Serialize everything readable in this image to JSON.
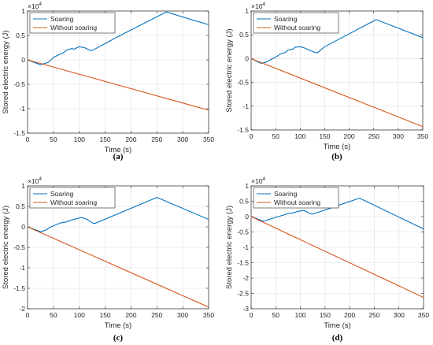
{
  "chart_data": [
    {
      "type": "line",
      "caption": "(a)",
      "xlabel": "Time (s)",
      "ylabel": "Stored electric energy (J)",
      "exponent_label": "×10",
      "exponent_power": "4",
      "xlim": [
        0,
        350
      ],
      "ylim": [
        -1.5,
        1.0
      ],
      "xticks": [
        0,
        50,
        100,
        150,
        200,
        250,
        300,
        350
      ],
      "yticks": [
        -1.5,
        -1,
        -0.5,
        0,
        0.5,
        1
      ],
      "ytick_labels": [
        "-1.5",
        "-1",
        "-0.5",
        "0",
        "0.5",
        "1"
      ],
      "grid": true,
      "legend_position": "top-left",
      "series": [
        {
          "name": "Soaring",
          "color": "#0072BD",
          "x": [
            0,
            25,
            40,
            50,
            60,
            70,
            75,
            85,
            90,
            100,
            110,
            120,
            125,
            170,
            268,
            350
          ],
          "y": [
            0,
            -0.1,
            -0.05,
            0.05,
            0.1,
            0.15,
            0.2,
            0.23,
            0.22,
            0.27,
            0.25,
            0.2,
            0.19,
            0.45,
            0.98,
            0.72
          ]
        },
        {
          "name": "Without soaring",
          "color": "#D95319",
          "x": [
            0,
            350
          ],
          "y": [
            0,
            -1.03
          ]
        }
      ]
    },
    {
      "type": "line",
      "caption": "(b)",
      "xlabel": "Time (s)",
      "ylabel": "Stored electric energy (J)",
      "exponent_label": "×10",
      "exponent_power": "4",
      "xlim": [
        0,
        350
      ],
      "ylim": [
        -1.5,
        1.0
      ],
      "xticks": [
        0,
        50,
        100,
        150,
        200,
        250,
        300,
        350
      ],
      "yticks": [
        -1.5,
        -1,
        -0.5,
        0,
        0.5,
        1
      ],
      "ytick_labels": [
        "-1.5",
        "-1",
        "-0.5",
        "0",
        "0.5",
        "1"
      ],
      "grid": true,
      "legend_position": "top-left",
      "series": [
        {
          "name": "Soaring",
          "color": "#0072BD",
          "x": [
            0,
            20,
            30,
            40,
            50,
            60,
            70,
            75,
            85,
            90,
            100,
            110,
            120,
            130,
            135,
            150,
            255,
            350
          ],
          "y": [
            0,
            -0.1,
            -0.08,
            -0.02,
            0.03,
            0.1,
            0.13,
            0.18,
            0.2,
            0.24,
            0.25,
            0.22,
            0.17,
            0.13,
            0.12,
            0.25,
            0.82,
            0.44
          ]
        },
        {
          "name": "Without soaring",
          "color": "#D95319",
          "x": [
            0,
            350
          ],
          "y": [
            0,
            -1.43
          ]
        }
      ]
    },
    {
      "type": "line",
      "caption": "(c)",
      "xlabel": "Time (s)",
      "ylabel": "Stored electric energy (J)",
      "exponent_label": "×10",
      "exponent_power": "4",
      "xlim": [
        0,
        350
      ],
      "ylim": [
        -2,
        1.0
      ],
      "xticks": [
        0,
        50,
        100,
        150,
        200,
        250,
        300,
        350
      ],
      "yticks": [
        -2,
        -1.5,
        -1,
        -0.5,
        0,
        0.5,
        1
      ],
      "ytick_labels": [
        "-2",
        "-1.5",
        "-1",
        "-0.5",
        "0",
        "0.5",
        "1"
      ],
      "grid": true,
      "legend_position": "top-left",
      "series": [
        {
          "name": "Soaring",
          "color": "#0072BD",
          "x": [
            0,
            25,
            35,
            45,
            55,
            65,
            75,
            85,
            95,
            105,
            115,
            125,
            130,
            250,
            350
          ],
          "y": [
            0,
            -0.12,
            -0.08,
            0.0,
            0.05,
            0.1,
            0.12,
            0.17,
            0.2,
            0.23,
            0.18,
            0.1,
            0.08,
            0.72,
            0.18
          ]
        },
        {
          "name": "Without soaring",
          "color": "#D95319",
          "x": [
            0,
            350
          ],
          "y": [
            0,
            -1.96
          ]
        }
      ]
    },
    {
      "type": "line",
      "caption": "(d)",
      "xlabel": "Time (s)",
      "ylabel": "Stored electric energy (J)",
      "exponent_label": "×10",
      "exponent_power": "4",
      "xlim": [
        0,
        350
      ],
      "ylim": [
        -3,
        1.0
      ],
      "xticks": [
        0,
        50,
        100,
        150,
        200,
        250,
        300,
        350
      ],
      "yticks": [
        -3,
        -2.5,
        -2,
        -1.5,
        -1,
        -0.5,
        0,
        0.5,
        1
      ],
      "ytick_labels": [
        "-3",
        "-2.5",
        "-2",
        "-1.5",
        "-1",
        "-0.5",
        "0",
        "0.5",
        "1"
      ],
      "grid": true,
      "legend_position": "top-left",
      "series": [
        {
          "name": "Soaring",
          "color": "#0072BD",
          "x": [
            0,
            25,
            35,
            45,
            55,
            65,
            75,
            85,
            95,
            105,
            110,
            120,
            125,
            220,
            350
          ],
          "y": [
            0,
            -0.15,
            -0.1,
            -0.05,
            0.0,
            0.05,
            0.1,
            0.12,
            0.17,
            0.2,
            0.18,
            0.1,
            0.08,
            0.6,
            -0.4
          ]
        },
        {
          "name": "Without soaring",
          "color": "#D95319",
          "x": [
            0,
            350
          ],
          "y": [
            0,
            -2.63
          ]
        }
      ]
    }
  ]
}
